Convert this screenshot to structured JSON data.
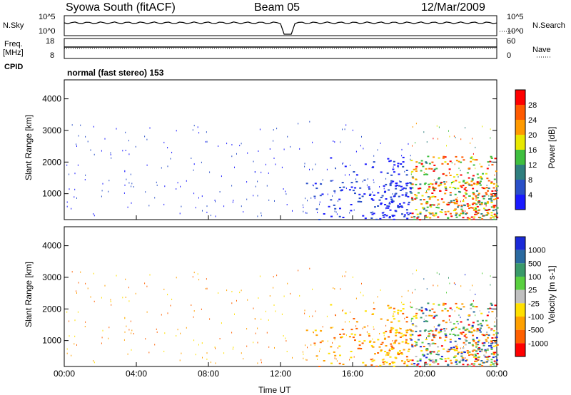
{
  "header": {
    "station": "Syowa South (fitACF)",
    "beam": "Beam 05",
    "date": "12/Mar/2009"
  },
  "panels": {
    "nsky_label": "N.Sky",
    "nsearch_label": "N.Search",
    "freq_label_1": "Freq.",
    "freq_label_2": "[MHz]",
    "nave_label": "Nave",
    "cpid_label": "CPID",
    "cpid_value": "normal (fast stereo) 153",
    "noise_ticks_left": [
      "10^5",
      "10^0"
    ],
    "noise_ticks_right": [
      "10^5",
      "10^0"
    ],
    "freq_ticks_left": [
      "18",
      "8"
    ],
    "freq_ticks_right": [
      "60",
      "0"
    ]
  },
  "chart_data": [
    {
      "type": "heatmap",
      "name": "power",
      "ylabel": "Slant Range [km]",
      "xlabel": "",
      "yticks": [
        1000,
        2000,
        3000,
        4000
      ],
      "ylim": [
        180,
        4600
      ],
      "colorbar_label": "Power [dB]",
      "colorbar_ticks": [
        "4",
        "8",
        "12",
        "16",
        "20",
        "24",
        "28"
      ],
      "colorbar_colors": [
        "#1a1aff",
        "#2a50c8",
        "#2f7f7f",
        "#3fbf3f",
        "#e8e800",
        "#ff9a00",
        "#ff5a00",
        "#ff0000"
      ]
    },
    {
      "type": "heatmap",
      "name": "velocity",
      "ylabel": "Slant Range [km]",
      "xlabel": "Time UT",
      "yticks": [
        1000,
        2000,
        3000,
        4000
      ],
      "ylim": [
        180,
        4600
      ],
      "xticks": [
        "00:00",
        "04:00",
        "08:00",
        "12:00",
        "16:00",
        "20:00",
        "00:00"
      ],
      "colorbar_label": "Velocity [m s-1]",
      "colorbar_ticks": [
        "1000",
        "500",
        "100",
        "25",
        "-25",
        "-100",
        "-500",
        "-1000"
      ],
      "colorbar_colors": [
        "#1a2ad8",
        "#2a6aa0",
        "#3a9a6a",
        "#5ad040",
        "#c0c0c0",
        "#ffe000",
        "#ffa000",
        "#ff6000",
        "#ff0000"
      ]
    }
  ]
}
